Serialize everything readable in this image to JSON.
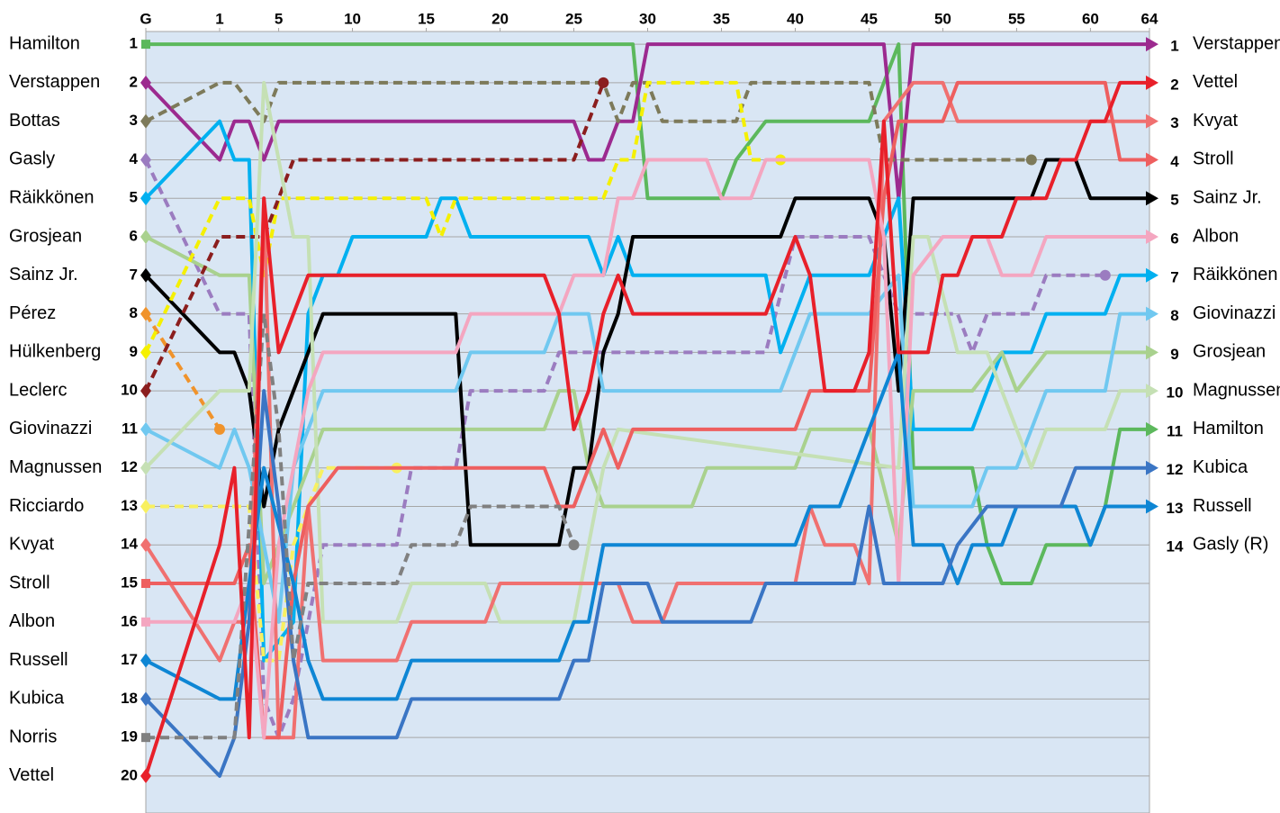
{
  "chart_data": {
    "type": "lap_chart",
    "xlim": [
      -4,
      64
    ],
    "ylim": [
      0.67,
      20.96
    ],
    "y_reversed": true,
    "grid": true,
    "xticks": [
      {
        "value": -4,
        "label": "G"
      },
      1,
      5,
      10,
      15,
      20,
      25,
      30,
      35,
      40,
      45,
      50,
      55,
      60,
      64
    ],
    "yticks": [
      1,
      2,
      3,
      4,
      5,
      6,
      7,
      8,
      9,
      10,
      11,
      12,
      13,
      14,
      15,
      16,
      17,
      18,
      19,
      20
    ],
    "y2lim": [
      0.67,
      20.96
    ],
    "y2ticks": [
      1,
      2,
      3,
      4,
      5,
      6,
      7,
      8,
      9,
      10,
      11,
      12,
      13,
      14
    ],
    "finish_order": [
      "Verstappen",
      "Vettel",
      "Kvyat",
      "Stroll",
      "Sainz Jr.",
      "Albon",
      "Räikkönen",
      "Giovinazzi",
      "Grosjean",
      "Magnussen",
      "Hamilton",
      "Kubica",
      "Russell",
      "Gasly (R)"
    ],
    "series": [
      {
        "name": "Hamilton",
        "color": "#5cb85c",
        "marker": "square",
        "dashed": false,
        "x": [
          -4,
          1,
          28,
          29,
          30,
          35,
          36,
          38,
          45,
          47,
          48,
          52,
          53,
          54,
          56,
          57,
          60,
          61,
          62,
          64
        ],
        "values": [
          1,
          1,
          1,
          1,
          5,
          5,
          4,
          3,
          3,
          1,
          12,
          12,
          14,
          15,
          15,
          14,
          14,
          13,
          11,
          11
        ]
      },
      {
        "name": "Verstappen",
        "color": "#9c2a8f",
        "marker": "diamond",
        "dashed": false,
        "x": [
          -4,
          1,
          2,
          3,
          4,
          5,
          25,
          26,
          27,
          28,
          29,
          30,
          46,
          47,
          48,
          64
        ],
        "values": [
          2,
          4,
          3,
          3,
          4,
          3,
          3,
          4,
          4,
          3,
          3,
          1,
          1,
          5,
          1,
          1
        ]
      },
      {
        "name": "Bottas",
        "color": "#7d7a5a",
        "marker": "diamond",
        "dashed": true,
        "x": [
          -4,
          1,
          2,
          4,
          5,
          27,
          28,
          29,
          30,
          31,
          36,
          37,
          45,
          46,
          56
        ],
        "values": [
          3,
          2,
          2,
          3,
          2,
          2,
          3,
          2,
          2,
          3,
          3,
          2,
          2,
          4,
          4
        ]
      },
      {
        "name": "Gasly",
        "color": "#9b7cc0",
        "marker": "diamond",
        "dashed": true,
        "x": [
          -4,
          1,
          3,
          4,
          5,
          6,
          8,
          13,
          14,
          17,
          18,
          23,
          24,
          38,
          40,
          45,
          47,
          48,
          51,
          52,
          53,
          56,
          57,
          61
        ],
        "values": [
          4,
          8,
          8,
          18,
          19,
          18,
          14,
          14,
          12,
          12,
          10,
          10,
          9,
          9,
          6,
          6,
          8,
          8,
          8,
          9,
          8,
          8,
          7,
          7
        ]
      },
      {
        "name": "Räikkönen",
        "color": "#00b0f0",
        "marker": "diamond",
        "dashed": false,
        "x": [
          -4,
          1,
          2,
          3,
          4,
          6,
          7,
          8,
          9,
          10,
          15,
          16,
          17,
          18,
          26,
          27,
          28,
          29,
          38,
          39,
          40,
          41,
          45,
          47,
          48,
          52,
          54,
          56,
          57,
          61,
          62,
          64
        ],
        "values": [
          5,
          3,
          4,
          4,
          17,
          16,
          8,
          7,
          7,
          6,
          6,
          5,
          5,
          6,
          6,
          7,
          6,
          7,
          7,
          9,
          8,
          7,
          7,
          5,
          11,
          11,
          9,
          9,
          8,
          8,
          7,
          7
        ]
      },
      {
        "name": "Grosjean",
        "color": "#a9d18e",
        "marker": "diamond",
        "dashed": false,
        "x": [
          -4,
          1,
          3,
          4,
          8,
          23,
          24,
          25,
          26,
          27,
          33,
          34,
          40,
          41,
          45,
          47,
          48,
          52,
          54,
          55,
          57,
          64
        ],
        "values": [
          6,
          7,
          7,
          15,
          11,
          11,
          10,
          10,
          12,
          13,
          13,
          12,
          12,
          11,
          11,
          14,
          10,
          10,
          9,
          10,
          9,
          9
        ]
      },
      {
        "name": "Sainz Jr.",
        "color": "#000000",
        "marker": "diamond",
        "dashed": false,
        "x": [
          -4,
          1,
          2,
          3,
          4,
          5,
          7,
          8,
          17,
          18,
          24,
          25,
          26,
          27,
          28,
          29,
          39,
          40,
          45,
          46,
          47,
          48,
          56,
          57,
          59,
          60,
          64
        ],
        "values": [
          7,
          9,
          9,
          10,
          13,
          11,
          9,
          8,
          8,
          14,
          14,
          12,
          12,
          9,
          8,
          6,
          6,
          5,
          5,
          6,
          10,
          5,
          5,
          4,
          4,
          5,
          5
        ]
      },
      {
        "name": "Pérez",
        "color": "#f0932b",
        "marker": "diamond",
        "dashed": true,
        "x": [
          -4,
          1
        ],
        "values": [
          8,
          11
        ]
      },
      {
        "name": "Hülkenberg",
        "color": "#f5f000",
        "marker": "diamond",
        "dashed": true,
        "x": [
          -4,
          1,
          3,
          4,
          5,
          15,
          16,
          17,
          27,
          28,
          29,
          30,
          36,
          37,
          39
        ],
        "values": [
          9,
          5,
          5,
          7,
          5,
          5,
          6,
          5,
          5,
          4,
          4,
          2,
          2,
          4,
          4
        ]
      },
      {
        "name": "Leclerc",
        "color": "#8b1e1e",
        "marker": "diamond",
        "dashed": true,
        "x": [
          -4,
          1,
          4,
          6,
          25,
          27
        ],
        "values": [
          10,
          6,
          6,
          4,
          4,
          2
        ]
      },
      {
        "name": "Giovinazzi",
        "color": "#70c8f0",
        "marker": "diamond",
        "dashed": false,
        "x": [
          -4,
          1,
          2,
          3,
          5,
          6,
          8,
          17,
          18,
          23,
          24,
          26,
          27,
          39,
          40,
          41,
          45,
          47,
          48,
          52,
          53,
          55,
          57,
          61,
          62,
          64
        ],
        "values": [
          11,
          12,
          11,
          12,
          16,
          12,
          10,
          10,
          9,
          9,
          8,
          8,
          10,
          10,
          9,
          8,
          8,
          7,
          13,
          13,
          12,
          12,
          10,
          10,
          8,
          8
        ]
      },
      {
        "name": "Magnussen",
        "color": "#c5e0b4",
        "marker": "diamond",
        "dashed": false,
        "x": [
          -4,
          1,
          3,
          4,
          5,
          6,
          7,
          8,
          13,
          14,
          19,
          20,
          25,
          26,
          27,
          28,
          47,
          48,
          49,
          51,
          53,
          55,
          56,
          57,
          61,
          62,
          64
        ],
        "values": [
          12,
          10,
          10,
          2,
          4,
          6,
          6,
          16,
          16,
          15,
          15,
          16,
          16,
          14,
          12,
          11,
          12,
          6,
          6,
          9,
          9,
          11,
          12,
          11,
          11,
          10,
          10
        ]
      },
      {
        "name": "Ricciardo",
        "color": "#f8f060",
        "marker": "diamond",
        "dashed": true,
        "x": [
          -4,
          3,
          4,
          5,
          6,
          8,
          13
        ],
        "values": [
          13,
          13,
          17,
          17,
          14,
          12,
          12
        ]
      },
      {
        "name": "Kvyat",
        "color": "#f07070",
        "marker": "diamond",
        "dashed": false,
        "x": [
          -4,
          1,
          2,
          3,
          4,
          5,
          6,
          7,
          8,
          13,
          14,
          19,
          20,
          28,
          29,
          31,
          32,
          40,
          41,
          42,
          44,
          45,
          46,
          48,
          50,
          51,
          64
        ],
        "values": [
          14,
          17,
          16,
          16,
          5,
          19,
          19,
          13,
          17,
          17,
          16,
          16,
          15,
          15,
          16,
          16,
          15,
          15,
          13,
          14,
          14,
          15,
          3,
          2,
          2,
          3,
          3
        ]
      },
      {
        "name": "Stroll",
        "color": "#ee5f5f",
        "marker": "square",
        "dashed": false,
        "x": [
          -4,
          2,
          3,
          4,
          5,
          6,
          7,
          9,
          18,
          23,
          24,
          25,
          27,
          28,
          29,
          40,
          41,
          45,
          46,
          47,
          50,
          51,
          61,
          62,
          64
        ],
        "values": [
          15,
          15,
          14,
          19,
          19,
          15,
          13,
          12,
          12,
          12,
          13,
          13,
          11,
          12,
          11,
          11,
          10,
          10,
          5,
          3,
          3,
          2,
          2,
          4,
          4
        ]
      },
      {
        "name": "Albon",
        "color": "#f4a6c0",
        "marker": "square",
        "dashed": false,
        "x": [
          -4,
          2,
          3,
          4,
          5,
          6,
          7,
          8,
          17,
          18,
          24,
          25,
          27,
          28,
          29,
          30,
          34,
          35,
          37,
          38,
          45,
          46,
          47,
          48,
          50,
          53,
          54,
          56,
          57,
          64
        ],
        "values": [
          16,
          16,
          15,
          19,
          14,
          12,
          10,
          9,
          9,
          8,
          8,
          7,
          7,
          5,
          5,
          4,
          4,
          5,
          5,
          4,
          4,
          6,
          15,
          7,
          6,
          6,
          7,
          7,
          6,
          6
        ]
      },
      {
        "name": "Russell",
        "color": "#0e86d4",
        "marker": "diamond",
        "dashed": false,
        "x": [
          -4,
          1,
          2,
          3,
          4,
          6,
          7,
          8,
          13,
          14,
          24,
          25,
          26,
          27,
          40,
          41,
          43,
          44,
          45,
          47,
          48,
          50,
          51,
          52,
          54,
          55,
          59,
          60,
          61,
          64
        ],
        "values": [
          17,
          18,
          18,
          15,
          12,
          15,
          17,
          18,
          18,
          17,
          17,
          16,
          16,
          14,
          14,
          13,
          13,
          12,
          11,
          9,
          14,
          14,
          15,
          14,
          14,
          13,
          13,
          14,
          13,
          13
        ]
      },
      {
        "name": "Kubica",
        "color": "#3a75c4",
        "marker": "diamond",
        "dashed": false,
        "x": [
          -4,
          1,
          2,
          3,
          4,
          5,
          6,
          7,
          13,
          14,
          24,
          25,
          26,
          27,
          30,
          31,
          37,
          38,
          44,
          45,
          46,
          47,
          50,
          51,
          53,
          58,
          59,
          64
        ],
        "values": [
          18,
          20,
          19,
          16,
          10,
          13,
          17,
          19,
          19,
          18,
          18,
          17,
          17,
          15,
          15,
          16,
          16,
          15,
          15,
          13,
          15,
          15,
          15,
          14,
          13,
          13,
          12,
          12
        ]
      },
      {
        "name": "Norris",
        "color": "#808080",
        "marker": "square",
        "dashed": true,
        "x": [
          -4,
          1,
          2,
          4,
          5,
          6,
          7,
          8,
          13,
          14,
          17,
          18,
          23,
          24,
          25
        ],
        "values": [
          19,
          19,
          19,
          8,
          11,
          17,
          15,
          15,
          15,
          14,
          14,
          13,
          13,
          13,
          14
        ]
      },
      {
        "name": "Vettel",
        "color": "#e8202a",
        "marker": "diamond",
        "dashed": false,
        "x": [
          -4,
          1,
          2,
          3,
          4,
          5,
          6,
          7,
          23,
          24,
          25,
          26,
          27,
          28,
          29,
          38,
          39,
          40,
          41,
          42,
          44,
          45,
          46,
          47,
          49,
          50,
          51,
          52,
          54,
          55,
          57,
          58,
          59,
          60,
          61,
          62,
          64
        ],
        "values": [
          20,
          14,
          12,
          19,
          5,
          9,
          8,
          7,
          7,
          8,
          11,
          10,
          8,
          7,
          8,
          8,
          7,
          6,
          7,
          10,
          10,
          9,
          3,
          9,
          9,
          7,
          7,
          6,
          6,
          5,
          5,
          4,
          4,
          3,
          3,
          2,
          2
        ]
      }
    ]
  }
}
